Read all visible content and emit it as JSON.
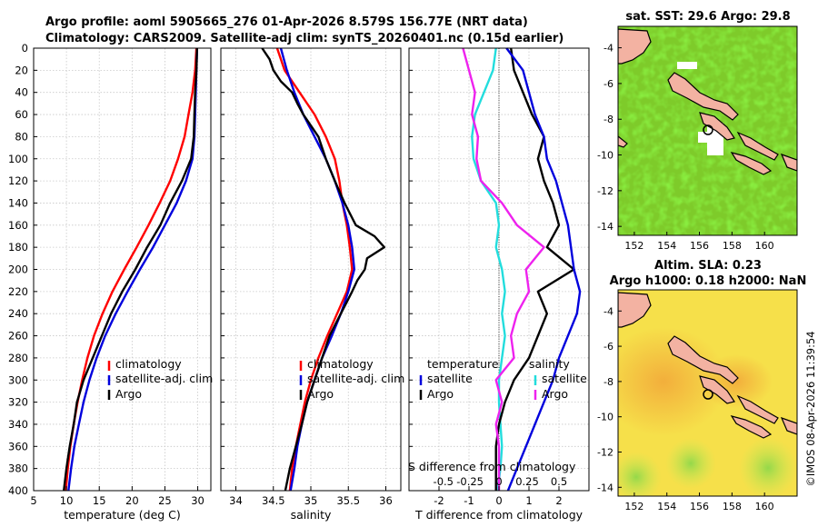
{
  "header": {
    "title_line1": "Argo profile: aoml 5905665_276 01-Apr-2026 8.579S 156.77E (NRT data)",
    "title_line2": "Climatology: CARS2009. Satellite-adj clim: synTS_20260401.nc (0.15d earlier)"
  },
  "colors": {
    "climatology": "#ff0000",
    "satellite": "#0000dd",
    "argo": "#000000",
    "t_sat": "#22dddd",
    "s_sat": "#ee22ee"
  },
  "legend": {
    "climatology": "climatology",
    "satellite_adj": "satellite-adj. clim",
    "argo": "Argo",
    "temperature_head": "temperature",
    "salinity_head": "salinity",
    "satellite": "satellite"
  },
  "s_diff_axis": {
    "label": "S difference from climatology",
    "ticks": [
      "-0.5",
      "-0.25",
      "0",
      "0.25",
      "0.5"
    ]
  },
  "chart_data": [
    {
      "type": "line",
      "name": "temperature_profile",
      "xlabel": "temperature (deg C)",
      "ylabel": "",
      "xlim": [
        5,
        32
      ],
      "ylim": [
        400,
        0
      ],
      "xticks": [
        5,
        10,
        15,
        20,
        25,
        30
      ],
      "yticks": [
        0,
        20,
        40,
        60,
        80,
        100,
        120,
        140,
        160,
        180,
        200,
        220,
        240,
        260,
        280,
        300,
        320,
        340,
        360,
        380,
        400
      ],
      "grid": true,
      "series": [
        {
          "name": "climatology",
          "color": "#ff0000",
          "depth": [
            0,
            20,
            40,
            60,
            80,
            100,
            120,
            140,
            160,
            180,
            200,
            220,
            240,
            260,
            280,
            300,
            320,
            340,
            360,
            380,
            400
          ],
          "values": [
            29.8,
            29.6,
            29.2,
            28.6,
            28.0,
            27.0,
            25.8,
            24.2,
            22.5,
            20.7,
            18.8,
            17.0,
            15.5,
            14.2,
            13.2,
            12.4,
            11.7,
            11.1,
            10.6,
            10.2,
            9.9
          ]
        },
        {
          "name": "satellite-adj. clim",
          "color": "#0000dd",
          "depth": [
            0,
            20,
            40,
            60,
            80,
            100,
            120,
            140,
            160,
            180,
            200,
            220,
            240,
            260,
            280,
            300,
            320,
            340,
            360,
            380,
            400
          ],
          "values": [
            29.9,
            29.8,
            29.7,
            29.6,
            29.5,
            29.2,
            28.2,
            26.8,
            25.0,
            23.2,
            21.2,
            19.3,
            17.5,
            15.9,
            14.6,
            13.5,
            12.6,
            11.9,
            11.2,
            10.7,
            10.3
          ]
        },
        {
          "name": "Argo",
          "color": "#000000",
          "depth": [
            0,
            20,
            40,
            60,
            80,
            100,
            120,
            140,
            160,
            180,
            200,
            220,
            240,
            260,
            280,
            300,
            320,
            340,
            360,
            380,
            400
          ],
          "values": [
            29.9,
            29.8,
            29.6,
            29.5,
            29.4,
            29.0,
            27.6,
            25.8,
            24.3,
            22.3,
            20.5,
            18.5,
            16.8,
            15.4,
            14.0,
            12.6,
            11.6,
            11.1,
            10.5,
            10.0,
            9.6
          ]
        }
      ]
    },
    {
      "type": "line",
      "name": "salinity_profile",
      "xlabel": "salinity",
      "ylabel": "",
      "xlim": [
        33.8,
        36.2
      ],
      "ylim": [
        400,
        0
      ],
      "xticks": [
        34,
        34.5,
        35,
        35.5,
        36
      ],
      "grid": true,
      "series": [
        {
          "name": "climatology",
          "color": "#ff0000",
          "depth": [
            0,
            20,
            40,
            60,
            80,
            100,
            120,
            140,
            160,
            180,
            200,
            220,
            240,
            260,
            280,
            300,
            320,
            340,
            360,
            380,
            400
          ],
          "values": [
            34.55,
            34.65,
            34.85,
            35.05,
            35.2,
            35.32,
            35.38,
            35.42,
            35.48,
            35.52,
            35.55,
            35.48,
            35.35,
            35.22,
            35.1,
            35.0,
            34.92,
            34.86,
            34.8,
            34.75,
            34.72
          ]
        },
        {
          "name": "satellite-adj. clim",
          "color": "#0000dd",
          "depth": [
            0,
            20,
            40,
            60,
            80,
            100,
            120,
            140,
            160,
            180,
            200,
            220,
            240,
            260,
            280,
            300,
            320,
            340,
            360,
            380,
            400
          ],
          "values": [
            34.6,
            34.68,
            34.78,
            34.9,
            35.05,
            35.2,
            35.32,
            35.42,
            35.5,
            35.55,
            35.58,
            35.5,
            35.4,
            35.28,
            35.15,
            35.05,
            34.95,
            34.88,
            34.82,
            34.78,
            34.73
          ]
        },
        {
          "name": "Argo",
          "color": "#000000",
          "depth": [
            0,
            10,
            20,
            30,
            40,
            50,
            60,
            70,
            80,
            100,
            120,
            140,
            160,
            170,
            180,
            190,
            200,
            210,
            220,
            240,
            260,
            280,
            300,
            320,
            340,
            360,
            380,
            400
          ],
          "values": [
            34.35,
            34.45,
            34.5,
            34.6,
            34.75,
            34.82,
            34.9,
            35.0,
            35.1,
            35.2,
            35.32,
            35.45,
            35.6,
            35.85,
            35.98,
            35.75,
            35.72,
            35.62,
            35.55,
            35.4,
            35.25,
            35.15,
            35.05,
            34.95,
            34.88,
            34.8,
            34.72,
            34.66
          ]
        }
      ]
    },
    {
      "type": "line",
      "name": "difference_profile",
      "xlabel": "T difference from climatology",
      "ylabel": "",
      "xlim": [
        -3,
        3
      ],
      "ylim": [
        400,
        0
      ],
      "xticks": [
        -2,
        -1,
        0,
        1,
        2
      ],
      "grid": true,
      "series": [
        {
          "name": "temperature satellite",
          "color": "#22dddd",
          "depth": [
            0,
            20,
            40,
            60,
            80,
            100,
            120,
            140,
            160,
            180,
            200,
            220,
            240,
            260,
            280,
            300,
            320,
            340,
            360,
            380,
            400
          ],
          "values": [
            -0.1,
            -0.2,
            -0.5,
            -0.8,
            -0.9,
            -0.85,
            -0.6,
            -0.1,
            0.0,
            -0.1,
            0.1,
            0.2,
            0.1,
            0.2,
            0.1,
            0.0,
            0.0,
            0.05,
            0.1,
            0.05,
            -0.05
          ]
        },
        {
          "name": "temperature Argo",
          "color": "#000000",
          "depth": [
            0,
            20,
            40,
            60,
            80,
            100,
            120,
            140,
            160,
            180,
            200,
            220,
            240,
            260,
            280,
            300,
            320,
            340,
            360,
            380,
            400
          ],
          "values": [
            0.4,
            0.5,
            0.8,
            1.1,
            1.5,
            1.3,
            1.5,
            1.8,
            2.0,
            1.6,
            2.5,
            1.3,
            1.6,
            1.3,
            1.0,
            0.5,
            0.2,
            0.0,
            -0.1,
            -0.1,
            -0.1
          ]
        },
        {
          "name": "salinity satellite",
          "color": "#ee22ee",
          "depth": [
            0,
            20,
            40,
            60,
            80,
            100,
            120,
            140,
            160,
            180,
            200,
            220,
            240,
            260,
            280,
            300,
            320,
            340,
            360,
            380,
            400
          ],
          "values": [
            -1.2,
            -1.0,
            -0.8,
            -0.9,
            -0.7,
            -0.75,
            -0.6,
            0.1,
            0.6,
            1.5,
            0.9,
            1.0,
            0.6,
            0.4,
            0.5,
            -0.1,
            0.1,
            -0.1,
            0.0,
            0.0,
            0.0
          ]
        },
        {
          "name": "salinity Argo",
          "color": "#0000dd",
          "depth": [
            0,
            20,
            40,
            60,
            80,
            100,
            120,
            140,
            160,
            180,
            200,
            220,
            240,
            260,
            280,
            300,
            320,
            340,
            360,
            380,
            400
          ],
          "values": [
            0.25,
            0.8,
            1.0,
            1.2,
            1.5,
            1.6,
            1.9,
            2.1,
            2.3,
            2.4,
            2.5,
            2.7,
            2.6,
            2.3,
            2.0,
            1.8,
            1.5,
            1.2,
            0.9,
            0.6,
            0.3
          ]
        }
      ]
    },
    {
      "type": "heatmap",
      "name": "sst_map",
      "title": "sat. SST: 29.6 Argo: 29.8",
      "xlim": [
        151,
        162
      ],
      "ylim": [
        -14.5,
        -2.8
      ],
      "xticks": [
        152,
        154,
        156,
        158,
        160
      ],
      "yticks": [
        -4,
        -6,
        -8,
        -10,
        -12,
        -14
      ],
      "float_position": [
        156.77,
        -8.579
      ]
    },
    {
      "type": "heatmap",
      "name": "sla_map",
      "title_line1": "Altim. SLA: 0.23",
      "title_line2": "Argo h1000: 0.18 h2000: NaN",
      "xlim": [
        151,
        162
      ],
      "ylim": [
        -14.5,
        -2.8
      ],
      "xticks": [
        152,
        154,
        156,
        158,
        160
      ],
      "yticks": [
        -4,
        -6,
        -8,
        -10,
        -12,
        -14
      ],
      "float_position": [
        156.77,
        -8.579
      ]
    }
  ],
  "footer": {
    "stamp": "©IMOS 08-Apr-2026 11:39:54"
  }
}
